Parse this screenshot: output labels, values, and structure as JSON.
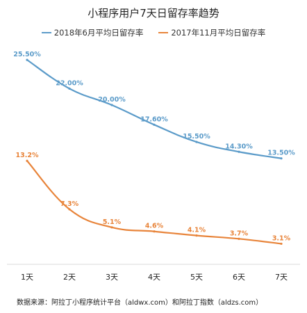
{
  "chart_data": {
    "type": "line",
    "title": "小程序用户7天日留存率趋势",
    "categories": [
      "1天",
      "2天",
      "3天",
      "4天",
      "5天",
      "6天",
      "7天"
    ],
    "series": [
      {
        "name": "2018年6月平均日留存率",
        "color": "#5b9bc9",
        "values": [
          25.5,
          22.0,
          20.0,
          17.6,
          15.5,
          14.3,
          13.5
        ],
        "labels": [
          "25.50%",
          "22.00%",
          "20.00%",
          "17.60%",
          "15.50%",
          "14.30%",
          "13.50%"
        ]
      },
      {
        "name": "2017年11月平均日留存率",
        "color": "#e8843a",
        "values": [
          13.2,
          7.3,
          5.1,
          4.6,
          4.1,
          3.7,
          3.1
        ],
        "labels": [
          "13.2%",
          "7.3%",
          "5.1%",
          "4.6%",
          "4.1%",
          "3.7%",
          "3.1%"
        ]
      }
    ],
    "ylim": [
      0,
      27
    ],
    "grid": false,
    "legend_position": "top"
  },
  "footer": "数据来源：阿拉丁小程序统计平台（aldwx.com）和阿拉丁指数（aldzs.com）"
}
